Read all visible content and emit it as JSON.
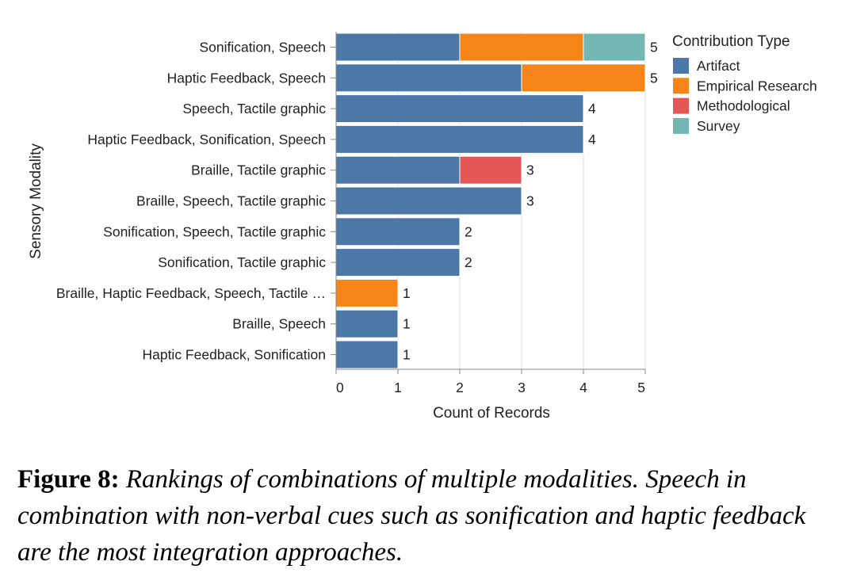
{
  "chart_data": {
    "type": "bar",
    "orientation": "horizontal",
    "stacked": true,
    "xlabel": "Count of Records",
    "ylabel": "Sensory Modality",
    "xlim": [
      0,
      5
    ],
    "x_ticks": [
      "0",
      "1",
      "2",
      "3",
      "4",
      "5"
    ],
    "grid": true,
    "legend_title": "Contribution Type",
    "legend_position": "right",
    "categories": [
      "Sonification, Speech",
      "Haptic Feedback, Speech",
      "Speech, Tactile graphic",
      "Haptic Feedback, Sonification, Speech",
      "Braille, Tactile graphic",
      "Braille, Speech, Tactile graphic",
      "Sonification, Speech, Tactile graphic",
      "Sonification, Tactile graphic",
      "Braille, Haptic Feedback, Speech, Tactile …",
      "Braille, Speech",
      "Haptic Feedback, Sonification"
    ],
    "series": [
      {
        "name": "Artifact",
        "color": "#4c78a8",
        "values": [
          2,
          3,
          4,
          4,
          2,
          3,
          2,
          2,
          0,
          1,
          1
        ]
      },
      {
        "name": "Empirical Research",
        "color": "#f58518",
        "values": [
          2,
          2,
          0,
          0,
          0,
          0,
          0,
          0,
          1,
          0,
          0
        ]
      },
      {
        "name": "Methodological",
        "color": "#e45756",
        "values": [
          0,
          0,
          0,
          0,
          1,
          0,
          0,
          0,
          0,
          0,
          0
        ]
      },
      {
        "name": "Survey",
        "color": "#72b7b2",
        "values": [
          1,
          0,
          0,
          0,
          0,
          0,
          0,
          0,
          0,
          0,
          0
        ]
      }
    ],
    "totals": [
      "5",
      "5",
      "4",
      "4",
      "3",
      "3",
      "2",
      "2",
      "1",
      "1",
      "1"
    ]
  },
  "caption": {
    "number": "Figure 8:",
    "text": "Rankings of combinations of multiple modalities. Speech in combination with non-verbal cues such as sonification and haptic feedback are the most integration approaches."
  }
}
